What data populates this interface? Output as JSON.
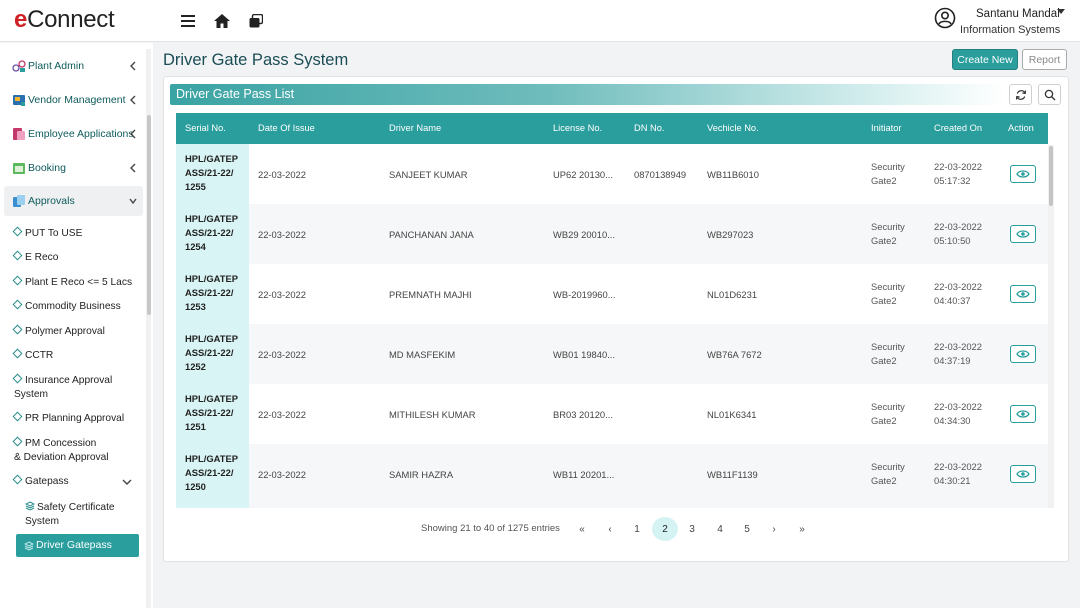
{
  "app": {
    "logo_e": "e",
    "logo_rest": "Connect"
  },
  "user": {
    "name": "Santanu Mandal",
    "department": "Information Systems"
  },
  "sidebar": {
    "groups": [
      {
        "label": "Plant Admin"
      },
      {
        "label": "Vendor Management"
      },
      {
        "label": "Employee Applications"
      },
      {
        "label": "Booking"
      },
      {
        "label": "Approvals"
      }
    ],
    "approvals": [
      "PUT To USE",
      "E Reco",
      "Plant E Reco <= 5 Lacs",
      "Commodity Business",
      "Polymer Approval",
      "CCTR",
      "Insurance Approval\nSystem",
      "PR Planning Approval",
      "PM Concession\n& Deviation Approval",
      "Gatepass"
    ],
    "gatepass_items": [
      "Safety Certificate\nSystem",
      "Driver Gatepass"
    ]
  },
  "page": {
    "title": "Driver Gate Pass System",
    "create_label": "Create New",
    "report_label": "Report",
    "list_title": "Driver Gate Pass List"
  },
  "table": {
    "columns": [
      "Serial No.",
      "Date Of Issue",
      "Driver Name",
      "License No.",
      "DN No.",
      "Vechicle No.",
      "Initiator",
      "Created On",
      "Action"
    ],
    "rows": [
      {
        "serial": "HPL/GATEP\nASS/21-22/\n1255",
        "date": "22-03-2022",
        "driver": "SANJEET KUMAR",
        "license": "UP62 20130...",
        "dn": "0870138949",
        "vehicle": "WB11B6010",
        "initiator": "Security\nGate2",
        "created": "22-03-2022\n05:17:32"
      },
      {
        "serial": "HPL/GATEP\nASS/21-22/\n1254",
        "date": "22-03-2022",
        "driver": "PANCHANAN JANA",
        "license": "WB29 20010...",
        "dn": "",
        "vehicle": "WB297023",
        "initiator": "Security\nGate2",
        "created": "22-03-2022\n05:10:50"
      },
      {
        "serial": "HPL/GATEP\nASS/21-22/\n1253",
        "date": "22-03-2022",
        "driver": "PREMNATH MAJHI",
        "license": "WB-2019960...",
        "dn": "",
        "vehicle": "NL01D6231",
        "initiator": "Security\nGate2",
        "created": "22-03-2022\n04:40:37"
      },
      {
        "serial": "HPL/GATEP\nASS/21-22/\n1252",
        "date": "22-03-2022",
        "driver": "MD MASFEKIM",
        "license": "WB01 19840...",
        "dn": "",
        "vehicle": "WB76A 7672",
        "initiator": "Security\nGate2",
        "created": "22-03-2022\n04:37:19"
      },
      {
        "serial": "HPL/GATEP\nASS/21-22/\n1251",
        "date": "22-03-2022",
        "driver": "MITHILESH KUMAR",
        "license": "BR03 20120...",
        "dn": "",
        "vehicle": "NL01K6341",
        "initiator": "Security\nGate2",
        "created": "22-03-2022\n04:34:30"
      },
      {
        "serial": "HPL/GATEP\nASS/21-22/\n1250",
        "date": "22-03-2022",
        "driver": "SAMIR HAZRA",
        "license": "WB11 20201...",
        "dn": "",
        "vehicle": "WB11F1139",
        "initiator": "Security\nGate2",
        "created": "22-03-2022\n04:30:21"
      }
    ]
  },
  "pagination": {
    "summary": "Showing 21 to 40 of 1275 entries",
    "first": "«",
    "prev": "‹",
    "next": "›",
    "last": "»",
    "pages": [
      "1",
      "2",
      "3",
      "4",
      "5"
    ],
    "current": "2"
  },
  "colors": {
    "accent": "#2a9d9d",
    "title": "#1b4d55",
    "brand_red": "#d11f26"
  }
}
